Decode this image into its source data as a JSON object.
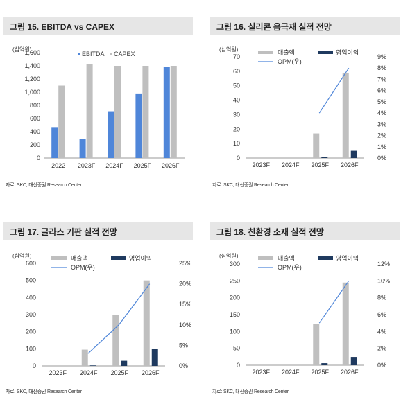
{
  "colors": {
    "primary": "#4f86d9",
    "secondary": "#bfbfbf",
    "op": "#1f3a5f",
    "line": "#4f86d9",
    "title_bg": "#e6e6e6"
  },
  "panels": [
    {
      "title": "그림 15.  EBITDA vs CAPEX",
      "unit": "(십억원)",
      "source": "자료: SKC, 대신증권 Research Center"
    },
    {
      "title": "그림 16.  실리콘 음극재 실적 전망",
      "unit": "(십억원)",
      "source": "자료: SKC, 대신증권 Research Center"
    },
    {
      "title": "그림 17.  글라스 기판 실적 전망",
      "unit": "(십억원)",
      "source": "자료: SKC, 대신증권 Research Center"
    },
    {
      "title": "그림 18.  친환경 소재 실적 전망",
      "unit": "(십억원)",
      "source": "자료: SKC, 대신증권 Research Center"
    }
  ],
  "chart_data": [
    {
      "type": "bar",
      "title": "EBITDA vs CAPEX",
      "categories": [
        "2022",
        "2023F",
        "2024F",
        "2025F",
        "2026F"
      ],
      "series": [
        {
          "name": "EBITDA",
          "values": [
            470,
            290,
            710,
            980,
            1380
          ]
        },
        {
          "name": "CAPEX",
          "values": [
            1100,
            1430,
            1400,
            1400,
            1400
          ]
        }
      ],
      "ylim": [
        0,
        1600
      ],
      "yticks": [
        0,
        200,
        400,
        600,
        800,
        1000,
        1200,
        1400,
        1600
      ],
      "ytick_labels": [
        "0",
        "200",
        "400",
        "600",
        "800",
        "1,000",
        "1,200",
        "1,400",
        "1,600"
      ],
      "legend": "top"
    },
    {
      "type": "bar",
      "title": "실리콘 음극재 실적 전망",
      "categories": [
        "2023F",
        "2024F",
        "2025F",
        "2026F"
      ],
      "series": [
        {
          "name": "매출액",
          "values": [
            0,
            0,
            17,
            59
          ]
        },
        {
          "name": "영업이익",
          "values": [
            0,
            0,
            0.5,
            5
          ]
        },
        {
          "name": "OPM(우)",
          "values": [
            null,
            null,
            4,
            8
          ],
          "axis": "right",
          "kind": "line"
        }
      ],
      "ylim": [
        0,
        70
      ],
      "yticks": [
        0,
        10,
        20,
        30,
        40,
        50,
        60,
        70
      ],
      "ylim_right": [
        0,
        9
      ],
      "yticks_right": [
        0,
        1,
        2,
        3,
        4,
        5,
        6,
        7,
        8,
        9
      ],
      "right_suffix": "%",
      "legend": "top"
    },
    {
      "type": "bar",
      "title": "글라스 기판 실적 전망",
      "categories": [
        "2023F",
        "2024F",
        "2025F",
        "2026F"
      ],
      "series": [
        {
          "name": "매출액",
          "values": [
            0,
            95,
            300,
            500
          ]
        },
        {
          "name": "영업이익",
          "values": [
            0,
            3,
            30,
            100
          ]
        },
        {
          "name": "OPM(우)",
          "values": [
            null,
            3,
            10,
            20
          ],
          "axis": "right",
          "kind": "line"
        }
      ],
      "ylim": [
        0,
        600
      ],
      "yticks": [
        0,
        100,
        200,
        300,
        400,
        500,
        600
      ],
      "ylim_right": [
        0,
        25
      ],
      "yticks_right": [
        0,
        5,
        10,
        15,
        20,
        25
      ],
      "right_suffix": "%",
      "legend": "top"
    },
    {
      "type": "bar",
      "title": "친환경 소재 실적 전망",
      "categories": [
        "2023F",
        "2024F",
        "2025F",
        "2026F"
      ],
      "series": [
        {
          "name": "매출액",
          "values": [
            0,
            0,
            122,
            245
          ]
        },
        {
          "name": "영업이익",
          "values": [
            0,
            0,
            6,
            24.5
          ]
        },
        {
          "name": "OPM(우)",
          "values": [
            null,
            null,
            5,
            10
          ],
          "axis": "right",
          "kind": "line"
        }
      ],
      "ylim": [
        0,
        300
      ],
      "yticks": [
        0,
        50,
        100,
        150,
        200,
        250,
        300
      ],
      "ylim_right": [
        0,
        12
      ],
      "yticks_right": [
        0,
        2,
        4,
        6,
        8,
        10,
        12
      ],
      "right_suffix": "%",
      "legend": "top"
    }
  ]
}
